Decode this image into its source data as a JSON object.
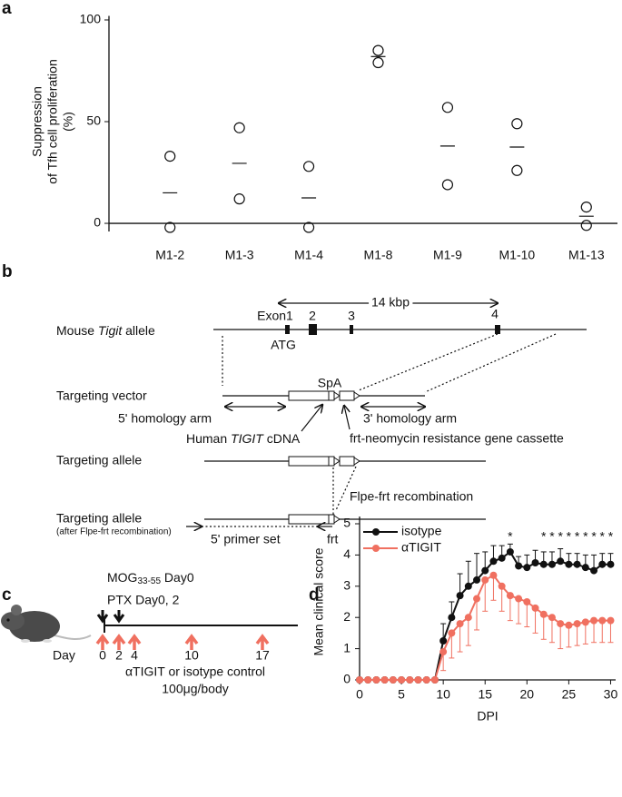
{
  "panel_labels": [
    "a",
    "b",
    "c",
    "d"
  ],
  "chart_data": [
    {
      "type": "dot-mean",
      "y_label": [
        "Suppression",
        "of Tfh cell proliferation",
        "(%)"
      ],
      "categories": [
        "M1-2",
        "M1-3",
        "M1-4",
        "M1-8",
        "M1-9",
        "M1-10",
        "M1-13"
      ],
      "values": [
        [
          33,
          -2
        ],
        [
          47,
          12
        ],
        [
          28,
          -2
        ],
        [
          85,
          79
        ],
        [
          57,
          19
        ],
        [
          49,
          26
        ],
        [
          8,
          -1
        ]
      ],
      "means": [
        15,
        29.5,
        12.5,
        82,
        38,
        37.5,
        3.5
      ],
      "ylim": [
        -4,
        102
      ],
      "yticks": [
        0,
        50,
        100
      ]
    },
    {
      "type": "line",
      "y_label": "Mean clinical score",
      "x_label": "DPI",
      "x": [
        0,
        1,
        2,
        3,
        4,
        5,
        6,
        7,
        8,
        9,
        10,
        11,
        12,
        13,
        14,
        15,
        16,
        17,
        18,
        19,
        20,
        21,
        22,
        23,
        24,
        25,
        26,
        27,
        28,
        29,
        30
      ],
      "series": [
        {
          "name": "isotype",
          "color": "#111111",
          "error_side": "up",
          "values": [
            0,
            0,
            0,
            0,
            0,
            0,
            0,
            0,
            0,
            0,
            1.25,
            2.0,
            2.7,
            3.0,
            3.2,
            3.5,
            3.8,
            3.9,
            4.1,
            3.65,
            3.6,
            3.75,
            3.7,
            3.7,
            3.8,
            3.7,
            3.7,
            3.6,
            3.5,
            3.7,
            3.7
          ],
          "errors": [
            0,
            0,
            0,
            0,
            0,
            0,
            0,
            0,
            0,
            0,
            0.55,
            0.5,
            0.7,
            0.8,
            0.85,
            0.6,
            0.5,
            0.4,
            0.25,
            0.3,
            0.4,
            0.4,
            0.4,
            0.4,
            0.4,
            0.35,
            0.35,
            0.4,
            0.5,
            0.35,
            0.35
          ]
        },
        {
          "name": "αTIGIT",
          "color": "#f07060",
          "error_side": "down",
          "values": [
            0,
            0,
            0,
            0,
            0,
            0,
            0,
            0,
            0,
            0,
            0.9,
            1.5,
            1.8,
            2.0,
            2.6,
            3.2,
            3.35,
            3.0,
            2.7,
            2.6,
            2.5,
            2.3,
            2.1,
            2.0,
            1.8,
            1.75,
            1.8,
            1.85,
            1.9,
            1.9,
            1.9
          ],
          "errors": [
            0,
            0,
            0,
            0,
            0,
            0,
            0,
            0,
            0,
            0,
            0.6,
            0.8,
            0.9,
            0.9,
            1.0,
            1.0,
            0.8,
            0.8,
            0.8,
            0.8,
            0.8,
            0.8,
            0.8,
            0.8,
            0.8,
            0.7,
            0.7,
            0.7,
            0.7,
            0.7,
            0.7
          ]
        }
      ],
      "significance": {
        "label": "*",
        "x": [
          18,
          22,
          23,
          24,
          25,
          26,
          27,
          28,
          29,
          30
        ]
      },
      "xlim": [
        0,
        30.6
      ],
      "xticks": [
        0,
        5,
        10,
        15,
        20,
        25,
        30
      ],
      "ylim": [
        0,
        5
      ],
      "yticks": [
        0,
        1,
        2,
        3,
        4,
        5
      ],
      "legend": "top-left"
    }
  ],
  "diagram_b": {
    "scale": "14 kbp",
    "exons": [
      "Exon1",
      "2",
      "3",
      "4"
    ],
    "rows": [
      {
        "label": [
          "Mouse ",
          "Tigit",
          " allele"
        ]
      },
      {
        "label": "Targeting vector"
      },
      {
        "label": "Targeting allele"
      },
      {
        "label": "Targeting allele",
        "sublabel": "(after Flpe-frt recombination)"
      }
    ],
    "atg": "ATG",
    "spa": "SpA",
    "arm5": "5' homology arm",
    "arm3": "3' homology arm",
    "cdna": [
      "Human ",
      "TIGIT",
      " cDNA"
    ],
    "cassette": "frt-neomycin resistance gene cassette",
    "recombination": "Flpe-frt recombination",
    "primer": "5' primer set",
    "frt": "frt"
  },
  "diagram_c": {
    "mog": [
      "MOG",
      "33-55",
      " Day0"
    ],
    "ptx": "PTX Day0, 2",
    "day": "Day",
    "days": [
      "0",
      "2",
      "4",
      "10",
      "17"
    ],
    "treatment": "αTIGIT or isotype control",
    "dose": "100μg/body"
  }
}
